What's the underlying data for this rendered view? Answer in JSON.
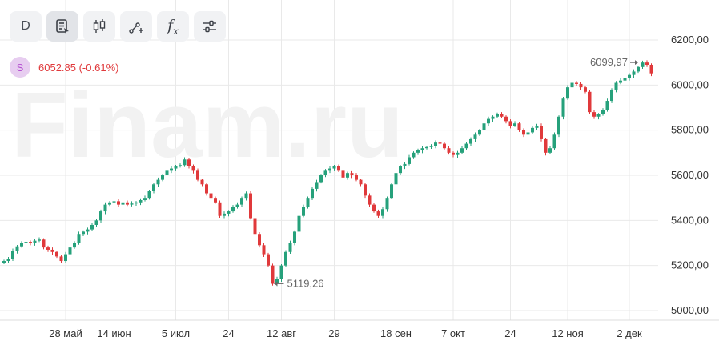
{
  "toolbar": {
    "interval_label": "D",
    "buttons": [
      "interval",
      "notes-icon",
      "candles-icon",
      "draw-tool-icon",
      "indicators-icon",
      "settings-sliders-icon"
    ],
    "fx_label": "f",
    "fx_sub": "x"
  },
  "ticker": {
    "badge_letter": "S",
    "price_text": "6052.85 (-0.61%)",
    "price_color": "#e0393b"
  },
  "watermark": "Finam.ru",
  "colors": {
    "up": "#26a17b",
    "down": "#e0393b",
    "grid": "#e9e9e9"
  },
  "chart_data": {
    "type": "candlestick",
    "ylim": [
      5000,
      6250
    ],
    "y_ticks": [
      "5000,00",
      "5200,00",
      "5400,00",
      "5600,00",
      "5800,00",
      "6000,00",
      "6200,00"
    ],
    "y_tick_values": [
      5000,
      5200,
      5400,
      5600,
      5800,
      6000,
      6200
    ],
    "x_ticks": [
      {
        "label": "28 май",
        "index": 14
      },
      {
        "label": "14 июн",
        "index": 25
      },
      {
        "label": "5 июл",
        "index": 39
      },
      {
        "label": "24",
        "index": 51
      },
      {
        "label": "12 авг",
        "index": 63
      },
      {
        "label": "29",
        "index": 75
      },
      {
        "label": "18 сен",
        "index": 89
      },
      {
        "label": "7 окт",
        "index": 102
      },
      {
        "label": "24",
        "index": 115
      },
      {
        "label": "12 ноя",
        "index": 128
      },
      {
        "label": "2 дек",
        "index": 142
      }
    ],
    "closes": [
      5220,
      5230,
      5265,
      5285,
      5300,
      5305,
      5300,
      5310,
      5315,
      5280,
      5270,
      5260,
      5240,
      5220,
      5250,
      5280,
      5300,
      5340,
      5350,
      5360,
      5380,
      5400,
      5440,
      5470,
      5480,
      5485,
      5470,
      5480,
      5470,
      5475,
      5480,
      5490,
      5500,
      5530,
      5560,
      5580,
      5600,
      5620,
      5630,
      5640,
      5645,
      5670,
      5640,
      5620,
      5580,
      5560,
      5520,
      5500,
      5480,
      5420,
      5430,
      5440,
      5460,
      5470,
      5500,
      5520,
      5410,
      5340,
      5290,
      5250,
      5200,
      5119,
      5140,
      5200,
      5260,
      5300,
      5350,
      5420,
      5460,
      5500,
      5540,
      5570,
      5600,
      5620,
      5630,
      5640,
      5620,
      5590,
      5610,
      5600,
      5580,
      5560,
      5510,
      5470,
      5440,
      5420,
      5450,
      5500,
      5560,
      5610,
      5640,
      5650,
      5680,
      5700,
      5710,
      5720,
      5725,
      5730,
      5745,
      5740,
      5720,
      5700,
      5690,
      5700,
      5720,
      5740,
      5760,
      5780,
      5800,
      5830,
      5850,
      5860,
      5870,
      5860,
      5840,
      5820,
      5830,
      5800,
      5780,
      5790,
      5810,
      5820,
      5760,
      5700,
      5720,
      5780,
      5860,
      5940,
      5990,
      6010,
      6005,
      5990,
      5970,
      5880,
      5860,
      5870,
      5890,
      5930,
      5980,
      6010,
      6020,
      6030,
      6045,
      6060,
      6080,
      6100,
      6090,
      6052
    ],
    "annotations": [
      {
        "label": "6099,97",
        "index": 144,
        "value": 6099.97,
        "position": "left"
      },
      {
        "label": "5119,26",
        "index": 61,
        "value": 5119.26,
        "position": "right"
      }
    ]
  }
}
